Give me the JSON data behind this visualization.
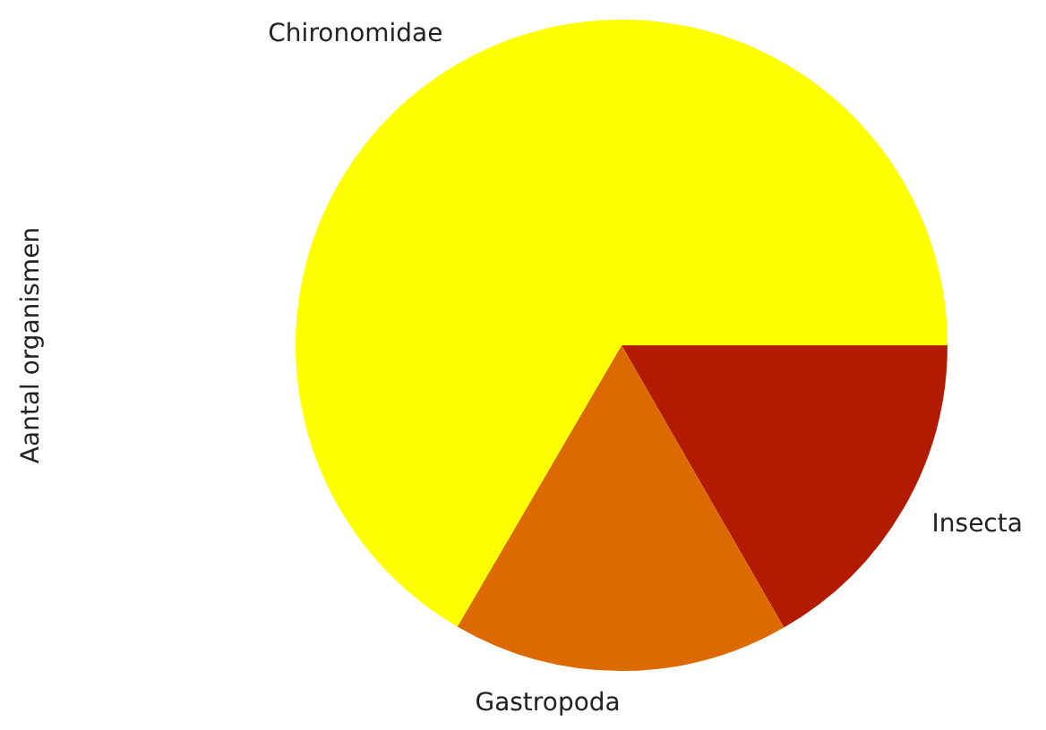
{
  "chart_data": {
    "type": "pie",
    "ylabel": "Aantal organismen",
    "categories": [
      "Chironomidae",
      "Gastropoda",
      "Insecta"
    ],
    "values": [
      66.6,
      16.7,
      16.7
    ],
    "colors": [
      "#ffff00",
      "#dd6a00",
      "#b31b00"
    ],
    "legend": false
  }
}
